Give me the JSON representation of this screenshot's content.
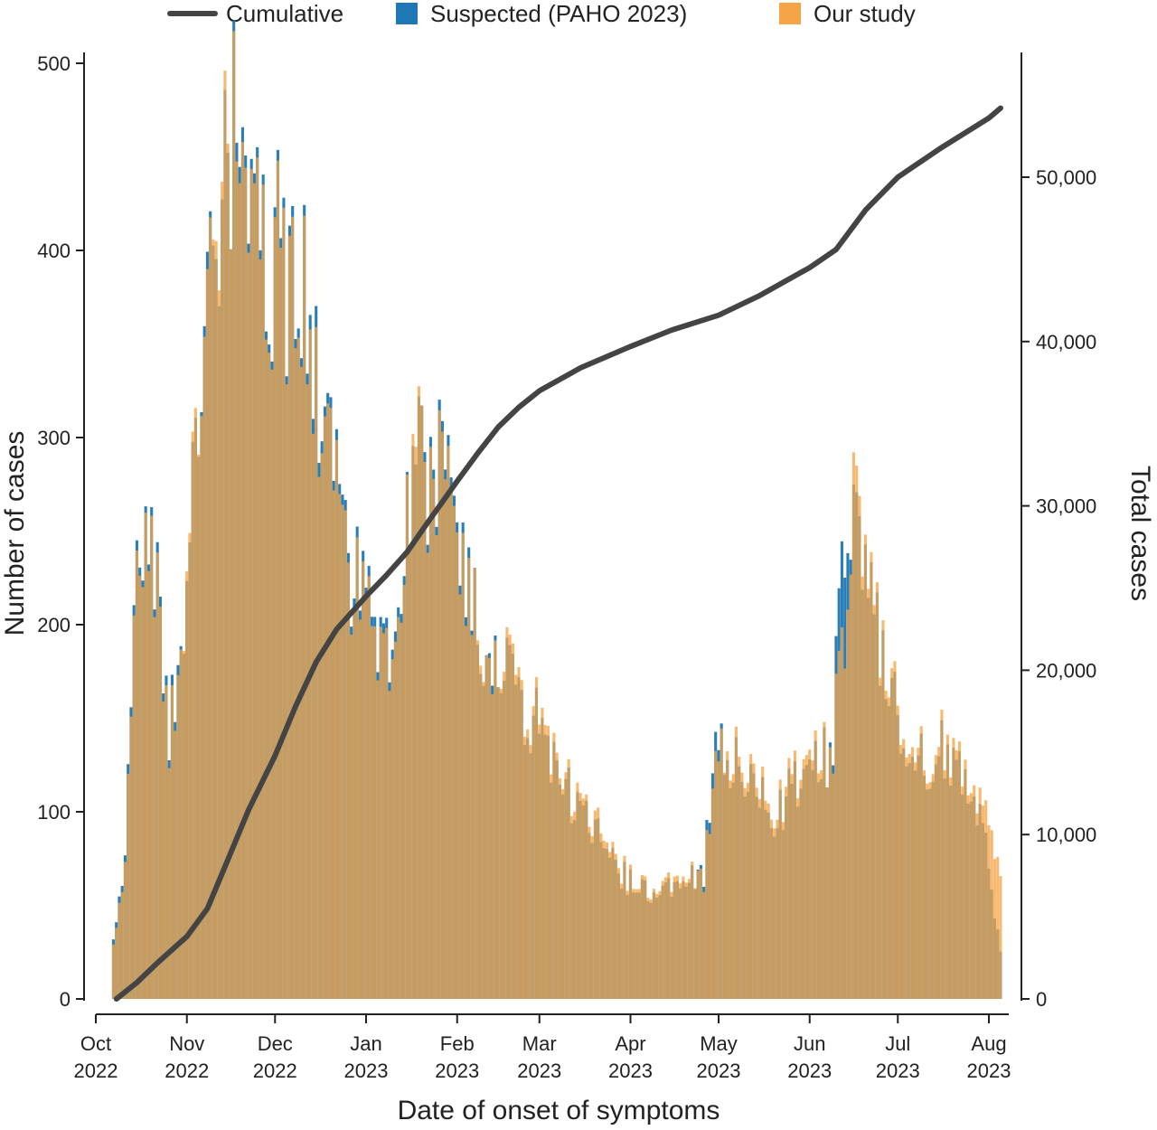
{
  "chart_data": {
    "type": "bar",
    "xlabel": "Date of onset of symptoms",
    "ylabel": "Number of cases",
    "y2label": "Total cases",
    "ylim": [
      0,
      500
    ],
    "y2lim": [
      0,
      55000
    ],
    "xlim": [
      "2022-10-07",
      "2023-08-06"
    ],
    "y_ticks": [
      0,
      100,
      200,
      300,
      400,
      500
    ],
    "y2_ticks": [
      0,
      10000,
      20000,
      30000,
      40000,
      50000
    ],
    "y_tick_labels": [
      "0",
      "100",
      "200",
      "300",
      "400",
      "500"
    ],
    "y2_tick_labels": [
      "0",
      "10,000",
      "20,000",
      "30,000",
      "40,000",
      "50,000"
    ],
    "x_ticks": [
      {
        "date": "2022-10-01",
        "month": "Oct",
        "year": "2022"
      },
      {
        "date": "2022-11-01",
        "month": "Nov",
        "year": "2022"
      },
      {
        "date": "2022-12-01",
        "month": "Dec",
        "year": "2022"
      },
      {
        "date": "2023-01-01",
        "month": "Jan",
        "year": "2023"
      },
      {
        "date": "2023-02-01",
        "month": "Feb",
        "year": "2023"
      },
      {
        "date": "2023-03-01",
        "month": "Mar",
        "year": "2023"
      },
      {
        "date": "2023-04-01",
        "month": "Apr",
        "year": "2023"
      },
      {
        "date": "2023-05-01",
        "month": "May",
        "year": "2023"
      },
      {
        "date": "2023-06-01",
        "month": "Jun",
        "year": "2023"
      },
      {
        "date": "2023-07-01",
        "month": "Jul",
        "year": "2023"
      },
      {
        "date": "2023-08-01",
        "month": "Aug",
        "year": "2023"
      }
    ],
    "legend": {
      "placement": "top",
      "entries": [
        {
          "label": "Cumulative",
          "kind": "line",
          "color": "#444444"
        },
        {
          "label": "Suspected  (PAHO 2023)",
          "kind": "bar",
          "color": "#1f77b4"
        },
        {
          "label": "Our study",
          "kind": "bar",
          "color": "#f5a446"
        }
      ]
    },
    "series": [
      {
        "name": "Suspected  (PAHO 2023)",
        "kind": "daily_bars",
        "color": "#1f77b4",
        "points": [
          [
            "2022-10-07",
            35
          ],
          [
            "2022-10-10",
            55
          ],
          [
            "2022-10-12",
            120
          ],
          [
            "2022-10-15",
            225
          ],
          [
            "2022-10-18",
            238
          ],
          [
            "2022-10-22",
            220
          ],
          [
            "2022-10-26",
            150
          ],
          [
            "2022-10-29",
            165
          ],
          [
            "2022-11-01",
            215
          ],
          [
            "2022-11-04",
            300
          ],
          [
            "2022-11-08",
            430
          ],
          [
            "2022-11-11",
            410
          ],
          [
            "2022-11-14",
            470
          ],
          [
            "2022-11-18",
            460
          ],
          [
            "2022-11-22",
            420
          ],
          [
            "2022-11-26",
            410
          ],
          [
            "2022-12-01",
            395
          ],
          [
            "2022-12-04",
            400
          ],
          [
            "2022-12-08",
            360
          ],
          [
            "2022-12-11",
            375
          ],
          [
            "2022-12-15",
            330
          ],
          [
            "2022-12-18",
            300
          ],
          [
            "2022-12-22",
            265
          ],
          [
            "2022-12-26",
            235
          ],
          [
            "2022-12-30",
            215
          ],
          [
            "2023-01-03",
            205
          ],
          [
            "2023-01-07",
            190
          ],
          [
            "2023-01-11",
            180
          ],
          [
            "2023-01-14",
            240
          ],
          [
            "2023-01-18",
            300
          ],
          [
            "2023-01-21",
            280
          ],
          [
            "2023-01-25",
            285
          ],
          [
            "2023-01-28",
            270
          ],
          [
            "2023-02-01",
            240
          ],
          [
            "2023-02-05",
            215
          ],
          [
            "2023-02-09",
            200
          ],
          [
            "2023-02-13",
            185
          ],
          [
            "2023-02-17",
            175
          ],
          [
            "2023-02-21",
            160
          ],
          [
            "2023-02-25",
            150
          ],
          [
            "2023-03-01",
            145
          ],
          [
            "2023-03-05",
            130
          ],
          [
            "2023-03-09",
            115
          ],
          [
            "2023-03-13",
            105
          ],
          [
            "2023-03-17",
            95
          ],
          [
            "2023-03-21",
            85
          ],
          [
            "2023-03-25",
            75
          ],
          [
            "2023-03-29",
            65
          ],
          [
            "2023-04-02",
            60
          ],
          [
            "2023-04-06",
            58
          ],
          [
            "2023-04-10",
            56
          ],
          [
            "2023-04-14",
            62
          ],
          [
            "2023-04-18",
            65
          ],
          [
            "2023-04-22",
            70
          ],
          [
            "2023-04-26",
            65
          ],
          [
            "2023-04-30",
            140
          ],
          [
            "2023-05-04",
            135
          ],
          [
            "2023-05-08",
            120
          ],
          [
            "2023-05-12",
            115
          ],
          [
            "2023-05-16",
            105
          ],
          [
            "2023-05-20",
            100
          ],
          [
            "2023-05-24",
            105
          ],
          [
            "2023-05-28",
            115
          ],
          [
            "2023-06-01",
            120
          ],
          [
            "2023-06-05",
            125
          ],
          [
            "2023-06-09",
            140
          ],
          [
            "2023-06-13",
            255
          ],
          [
            "2023-06-16",
            240
          ],
          [
            "2023-06-20",
            230
          ],
          [
            "2023-06-24",
            200
          ],
          [
            "2023-06-28",
            170
          ],
          [
            "2023-07-02",
            140
          ],
          [
            "2023-07-06",
            125
          ],
          [
            "2023-07-10",
            125
          ],
          [
            "2023-07-14",
            130
          ],
          [
            "2023-07-18",
            130
          ],
          [
            "2023-07-22",
            125
          ],
          [
            "2023-07-26",
            115
          ],
          [
            "2023-07-30",
            100
          ],
          [
            "2023-08-02",
            55
          ],
          [
            "2023-08-05",
            25
          ]
        ]
      },
      {
        "name": "Our study",
        "kind": "daily_bars",
        "color": "#f5a446",
        "points": [
          [
            "2022-10-07",
            32
          ],
          [
            "2022-10-10",
            52
          ],
          [
            "2022-10-12",
            115
          ],
          [
            "2022-10-15",
            220
          ],
          [
            "2022-10-18",
            235
          ],
          [
            "2022-10-22",
            215
          ],
          [
            "2022-10-26",
            145
          ],
          [
            "2022-10-29",
            160
          ],
          [
            "2022-11-01",
            220
          ],
          [
            "2022-11-04",
            305
          ],
          [
            "2022-11-08",
            420
          ],
          [
            "2022-11-11",
            420
          ],
          [
            "2022-11-14",
            480
          ],
          [
            "2022-11-18",
            450
          ],
          [
            "2022-11-22",
            415
          ],
          [
            "2022-11-26",
            405
          ],
          [
            "2022-12-01",
            390
          ],
          [
            "2022-12-04",
            395
          ],
          [
            "2022-12-08",
            355
          ],
          [
            "2022-12-11",
            370
          ],
          [
            "2022-12-15",
            320
          ],
          [
            "2022-12-18",
            295
          ],
          [
            "2022-12-22",
            260
          ],
          [
            "2022-12-26",
            230
          ],
          [
            "2022-12-30",
            210
          ],
          [
            "2023-01-03",
            200
          ],
          [
            "2023-01-07",
            185
          ],
          [
            "2023-01-11",
            175
          ],
          [
            "2023-01-14",
            235
          ],
          [
            "2023-01-18",
            310
          ],
          [
            "2023-01-21",
            275
          ],
          [
            "2023-01-25",
            280
          ],
          [
            "2023-01-28",
            265
          ],
          [
            "2023-02-01",
            235
          ],
          [
            "2023-02-05",
            210
          ],
          [
            "2023-02-09",
            205
          ],
          [
            "2023-02-13",
            180
          ],
          [
            "2023-02-17",
            180
          ],
          [
            "2023-02-21",
            165
          ],
          [
            "2023-02-25",
            155
          ],
          [
            "2023-03-01",
            150
          ],
          [
            "2023-03-05",
            135
          ],
          [
            "2023-03-09",
            118
          ],
          [
            "2023-03-13",
            110
          ],
          [
            "2023-03-17",
            98
          ],
          [
            "2023-03-21",
            90
          ],
          [
            "2023-03-25",
            78
          ],
          [
            "2023-03-29",
            68
          ],
          [
            "2023-04-02",
            62
          ],
          [
            "2023-04-06",
            60
          ],
          [
            "2023-04-10",
            58
          ],
          [
            "2023-04-14",
            65
          ],
          [
            "2023-04-18",
            68
          ],
          [
            "2023-04-22",
            72
          ],
          [
            "2023-04-26",
            62
          ],
          [
            "2023-04-30",
            130
          ],
          [
            "2023-05-04",
            140
          ],
          [
            "2023-05-08",
            125
          ],
          [
            "2023-05-12",
            120
          ],
          [
            "2023-05-16",
            110
          ],
          [
            "2023-05-20",
            105
          ],
          [
            "2023-05-24",
            110
          ],
          [
            "2023-05-28",
            120
          ],
          [
            "2023-06-01",
            125
          ],
          [
            "2023-06-05",
            130
          ],
          [
            "2023-06-09",
            135
          ],
          [
            "2023-06-13",
            200
          ],
          [
            "2023-06-16",
            255
          ],
          [
            "2023-06-20",
            235
          ],
          [
            "2023-06-24",
            205
          ],
          [
            "2023-06-28",
            175
          ],
          [
            "2023-07-02",
            145
          ],
          [
            "2023-07-06",
            130
          ],
          [
            "2023-07-10",
            128
          ],
          [
            "2023-07-14",
            135
          ],
          [
            "2023-07-18",
            135
          ],
          [
            "2023-07-22",
            130
          ],
          [
            "2023-07-26",
            120
          ],
          [
            "2023-07-30",
            110
          ],
          [
            "2023-08-02",
            85
          ],
          [
            "2023-08-05",
            65
          ]
        ]
      },
      {
        "name": "Cumulative",
        "kind": "line",
        "axis": "y2",
        "color": "#444444",
        "points": [
          [
            "2022-10-08",
            0
          ],
          [
            "2022-10-15",
            1000
          ],
          [
            "2022-10-22",
            2200
          ],
          [
            "2022-11-01",
            3800
          ],
          [
            "2022-11-08",
            5500
          ],
          [
            "2022-11-15",
            8500
          ],
          [
            "2022-11-22",
            11500
          ],
          [
            "2022-12-01",
            14800
          ],
          [
            "2022-12-08",
            17800
          ],
          [
            "2022-12-15",
            20500
          ],
          [
            "2022-12-22",
            22500
          ],
          [
            "2023-01-01",
            24500
          ],
          [
            "2023-01-08",
            25800
          ],
          [
            "2023-01-15",
            27200
          ],
          [
            "2023-01-22",
            29000
          ],
          [
            "2023-02-01",
            31500
          ],
          [
            "2023-02-08",
            33200
          ],
          [
            "2023-02-15",
            34800
          ],
          [
            "2023-02-22",
            36000
          ],
          [
            "2023-03-01",
            37000
          ],
          [
            "2023-03-15",
            38400
          ],
          [
            "2023-04-01",
            39700
          ],
          [
            "2023-04-15",
            40700
          ],
          [
            "2023-05-01",
            41600
          ],
          [
            "2023-05-15",
            42800
          ],
          [
            "2023-06-01",
            44500
          ],
          [
            "2023-06-10",
            45600
          ],
          [
            "2023-06-20",
            48000
          ],
          [
            "2023-07-01",
            50000
          ],
          [
            "2023-07-15",
            51700
          ],
          [
            "2023-08-01",
            53600
          ],
          [
            "2023-08-05",
            54200
          ]
        ]
      }
    ]
  }
}
